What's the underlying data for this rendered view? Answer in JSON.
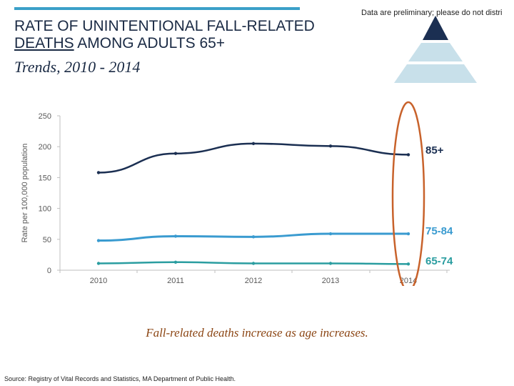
{
  "header": {
    "note": "Data are preliminary; please do not distri",
    "title_line1": "RATE OF UNINTENTIONAL FALL-RELATED",
    "title_line2_underlined": "DEATHS",
    "title_line2_rest": " AMONG ADULTS 65+",
    "subtitle": "Trends, 2010 - 2014"
  },
  "colors": {
    "series_85": "#1b2f52",
    "series_75_84": "#3a9bd0",
    "series_65_74": "#2a9da0",
    "highlight": "#c8622b",
    "pyramid_top": "#1b2f52",
    "pyramid_mid": "#c8e0ea",
    "pyramid_bottom": "#c8e0ea"
  },
  "chart_data": {
    "type": "line",
    "x": [
      "2010",
      "2011",
      "2012",
      "2013",
      "2014"
    ],
    "ylabel": "Rate per 100,000 population",
    "ylim": [
      0,
      250
    ],
    "yticks": [
      "0",
      "50",
      "100",
      "150",
      "200",
      "250"
    ],
    "series": [
      {
        "name": "85+",
        "values": [
          158,
          189,
          205,
          201,
          187
        ]
      },
      {
        "name": "75-84",
        "values": [
          48,
          55,
          54,
          59,
          59
        ]
      },
      {
        "name": "65-74",
        "values": [
          11,
          13,
          11,
          11,
          10
        ]
      }
    ],
    "highlight": "2014",
    "grid": false
  },
  "caption": "Fall-related deaths increase as age increases.",
  "source": "Source: Registry of Vital Records and Statistics, MA Department of Public Health."
}
